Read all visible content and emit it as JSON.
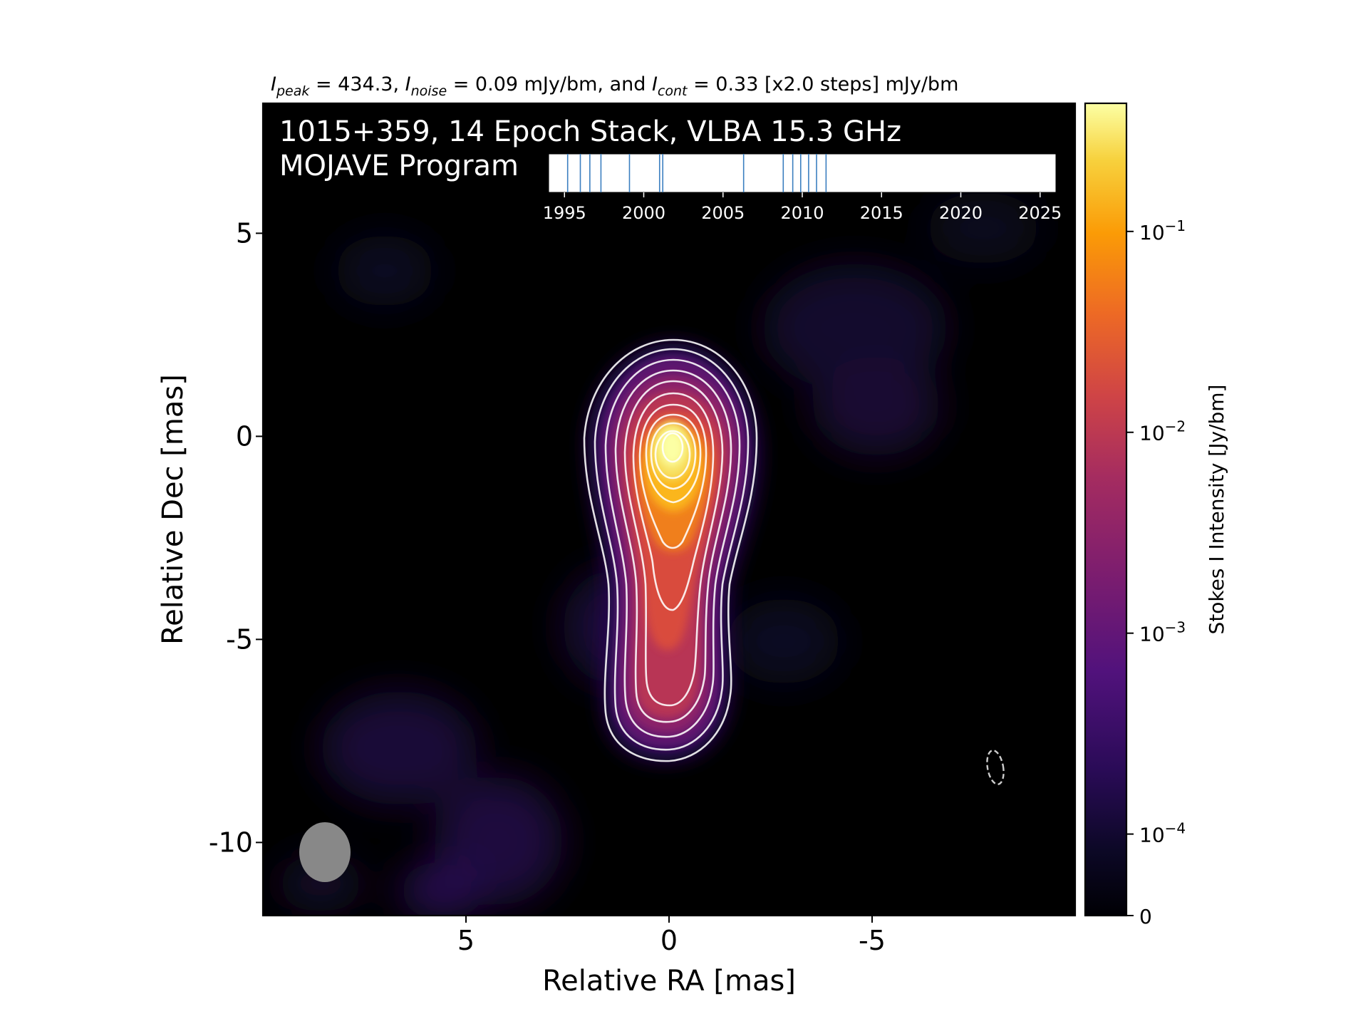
{
  "chart_data": {
    "type": "heatmap",
    "title_parts": {
      "i_peak": "I",
      "peak_sub": "peak",
      "peak_value": " = 434.3, ",
      "i_noise": "I",
      "noise_sub": "noise",
      "noise_value": " = 0.09 mJy/bm, and ",
      "i_cont": "I",
      "cont_sub": "cont",
      "cont_value": " = 0.33 [x2.0 steps] mJy/bm"
    },
    "panel_title_line1": "1015+359, 14 Epoch Stack, VLBA 15.3 GHz",
    "panel_title_line2": "MOJAVE Program",
    "xlabel": "Relative RA [mas]",
    "ylabel": "Relative Dec [mas]",
    "xlim": [
      10,
      -10
    ],
    "ylim": [
      -11.8,
      8.2
    ],
    "xticks": [
      {
        "value": 5,
        "label": "5"
      },
      {
        "value": 0,
        "label": "0"
      },
      {
        "value": -5,
        "label": "-5"
      }
    ],
    "yticks": [
      {
        "value": 5,
        "label": "5"
      },
      {
        "value": 0,
        "label": "0"
      },
      {
        "value": -5,
        "label": "-5"
      },
      {
        "value": -10,
        "label": "-10"
      }
    ],
    "colorbar": {
      "label": "Stokes I Intensity [Jy/bm]",
      "scale": "log",
      "colormap": "inferno",
      "ticks": [
        {
          "value": 0.1,
          "base": "10",
          "exp": "−1"
        },
        {
          "value": 0.01,
          "base": "10",
          "exp": "−2"
        },
        {
          "value": 0.001,
          "base": "10",
          "exp": "−3"
        },
        {
          "value": 0.0001,
          "base": "10",
          "exp": "−4"
        },
        {
          "value": 0,
          "base": "0",
          "exp": ""
        }
      ]
    },
    "contours_mJy_per_beam": [
      0.33,
      0.66,
      1.32,
      2.64,
      5.28,
      10.56,
      21.12,
      42.24,
      84.48,
      168.96,
      337.92
    ],
    "peak_mJy_per_beam": 434.3,
    "noise_mJy_per_beam": 0.09,
    "contour_color": "#ffffff",
    "beam": {
      "major_mas": 1.5,
      "minor_mas": 1.3,
      "pa_deg": 0,
      "center": [
        8.5,
        -10.3
      ],
      "color": "#888888"
    },
    "epoch_timeline": {
      "xlim": [
        1994,
        2026
      ],
      "ticks": [
        "1995",
        "2000",
        "2005",
        "2010",
        "2015",
        "2020",
        "2025"
      ],
      "epochs": [
        1995.2,
        1996.0,
        1996.6,
        1997.3,
        1999.1,
        2001.0,
        2001.2,
        2006.3,
        2008.8,
        2009.4,
        2009.9,
        2010.4,
        2010.9,
        2011.5
      ],
      "line_color": "#3b7fc0"
    }
  }
}
